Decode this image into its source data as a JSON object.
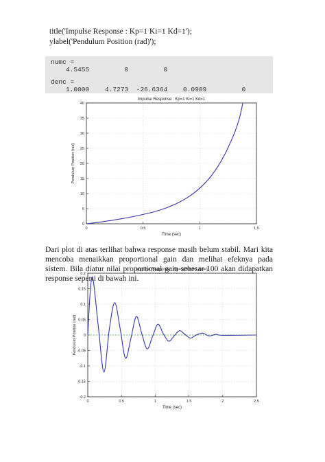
{
  "code": {
    "line1": "title('Impulse Response : Kp=1 Ki=1 Kd=1');",
    "line2": "ylabel('Pendulum Position (rad)');"
  },
  "console": {
    "numc_label": "numc =",
    "numc_values": "4.5455         0         0",
    "denc_label": "denc =",
    "denc_values": "1.0000    4.7273  -26.6364    0.0909         0"
  },
  "paragraph": "Dari plot di atas terlihat bahwa response masih belum stabil. Mari kita mencoba menaikkan proportional gain dan melihat efeknya pada sistem. Bila diatur nilai proportional gain sebesar 100 akan didapatkan response seperti di bawah ini.",
  "chart_data": [
    {
      "type": "line",
      "title": "Impulse Response : Kp=1 Ki=1 Kd=1",
      "xlabel": "Time (sec)",
      "ylabel": "Pendulum Position (rad)",
      "xlim": [
        0,
        1.5
      ],
      "ylim": [
        0,
        40
      ],
      "xticks": [
        "0",
        "0.5",
        "1",
        "1.5"
      ],
      "yticks": [
        "0",
        "5",
        "10",
        "15",
        "20",
        "25",
        "30",
        "35",
        "40"
      ],
      "color": "#3333aa",
      "x": [
        0,
        0.1,
        0.2,
        0.3,
        0.4,
        0.5,
        0.6,
        0.7,
        0.8,
        0.9,
        1.0,
        1.1,
        1.2,
        1.3,
        1.35,
        1.38
      ],
      "y": [
        0,
        0.45,
        1.0,
        1.6,
        2.3,
        3.1,
        4.0,
        5.2,
        6.8,
        8.9,
        11.8,
        15.8,
        21.5,
        29.5,
        35.0,
        40.0
      ]
    },
    {
      "type": "line",
      "title": "Impulse Response : Kp=100 Ki=1 Kd=1",
      "xlabel": "Time (sec)",
      "ylabel": "Pendulum Position (rad)",
      "xlim": [
        0,
        2.5
      ],
      "ylim": [
        -0.2,
        0.2
      ],
      "xticks": [
        "0",
        "0.5",
        "1",
        "1.5",
        "2",
        "2.5"
      ],
      "yticks": [
        "-0.2",
        "-0.15",
        "-0.1",
        "-0.05",
        "0",
        "0.05",
        "0.1",
        "0.15",
        "0.2"
      ],
      "color": "#3333aa",
      "zero_line_color": "#3a9a3a",
      "x": [
        0,
        0.04,
        0.08,
        0.16,
        0.24,
        0.32,
        0.4,
        0.48,
        0.56,
        0.64,
        0.72,
        0.8,
        0.88,
        0.96,
        1.04,
        1.12,
        1.2,
        1.28,
        1.36,
        1.44,
        1.52,
        1.6,
        1.7,
        1.8,
        1.9,
        2.0,
        2.5
      ],
      "y": [
        0,
        0.15,
        0.178,
        0.02,
        -0.12,
        0.02,
        0.105,
        0.02,
        -0.075,
        -0.01,
        0.06,
        0.005,
        -0.045,
        -0.005,
        0.035,
        0.004,
        -0.02,
        -0.003,
        0.014,
        0.002,
        -0.01,
        -0.001,
        0.006,
        -0.003,
        0.002,
        -0.001,
        0
      ]
    }
  ]
}
